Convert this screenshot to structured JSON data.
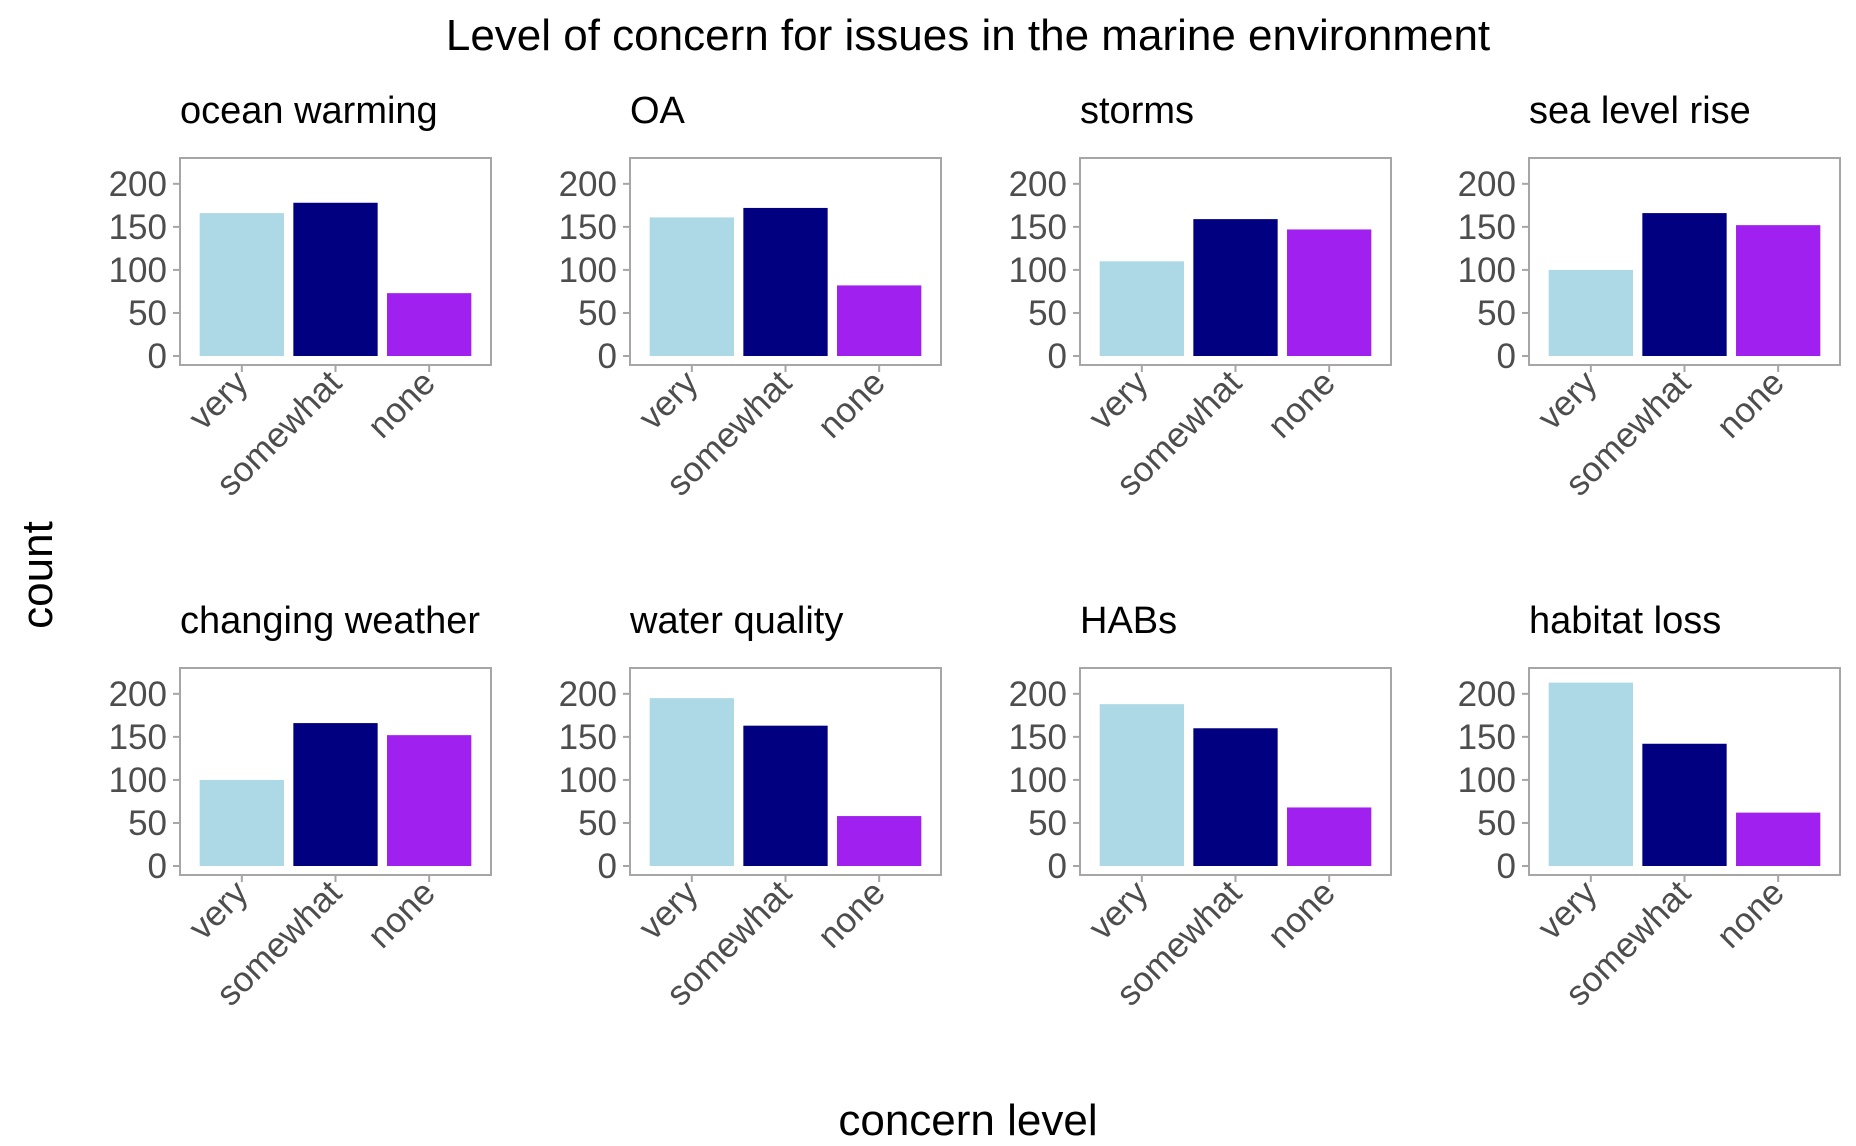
{
  "chart_data": {
    "type": "bar",
    "title": "Level of concern for issues in the marine environment",
    "xlabel": "concern level",
    "ylabel": "count",
    "categories": [
      "very",
      "somewhat",
      "none"
    ],
    "yticks": [
      0,
      50,
      100,
      150,
      200
    ],
    "ylim": [
      0,
      230
    ],
    "grid": false,
    "legend": "none",
    "colors": {
      "very": "#add8e6",
      "somewhat": "#000080",
      "none": "#a020f0"
    },
    "panels": [
      {
        "name": "ocean warming",
        "values": [
          166,
          178,
          73
        ]
      },
      {
        "name": "OA",
        "values": [
          161,
          172,
          82
        ]
      },
      {
        "name": "storms",
        "values": [
          110,
          159,
          147
        ]
      },
      {
        "name": "sea level rise",
        "values": [
          100,
          166,
          152
        ]
      },
      {
        "name": "changing weather",
        "values": [
          100,
          166,
          152
        ]
      },
      {
        "name": "water quality",
        "values": [
          195,
          163,
          58
        ]
      },
      {
        "name": "HABs",
        "values": [
          188,
          160,
          68
        ]
      },
      {
        "name": "habitat loss",
        "values": [
          213,
          142,
          62
        ]
      }
    ]
  }
}
